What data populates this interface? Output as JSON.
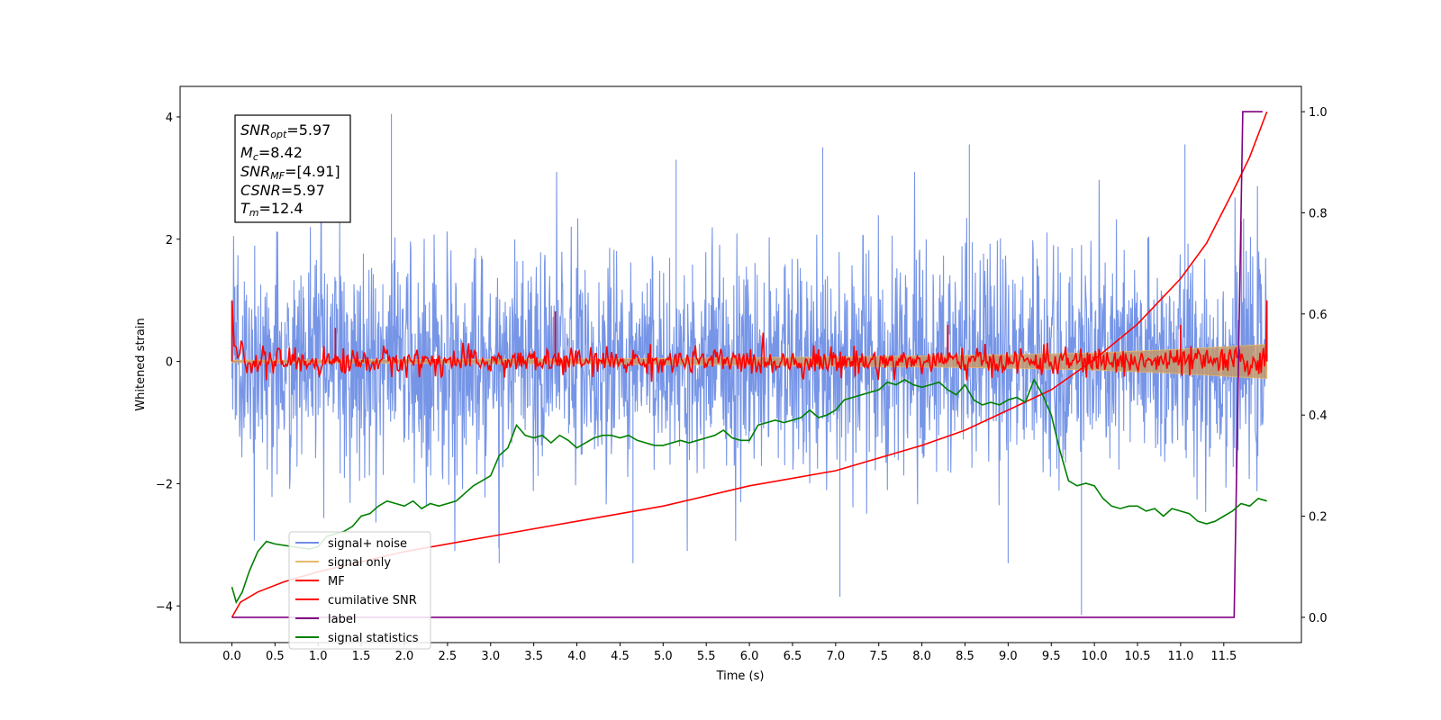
{
  "colors": {
    "signal_noise": "#6f8fe6",
    "signal_only": "#e8b86d",
    "signal_only_fill": "#c49a6c",
    "mf": "#ff0000",
    "cumulative_snr": "#ff0000",
    "label": "#800080",
    "signal_statistics": "#008000"
  },
  "stats_box": {
    "snr_opt": {
      "base": "SNR",
      "sub": "opt",
      "value": "=5.97"
    },
    "mc": {
      "base": "M",
      "sub": "c",
      "value": "=8.42"
    },
    "snr_mf": {
      "base": "SNR",
      "sub": "MF",
      "value": "=[4.91]"
    },
    "csnr": {
      "base": "CSNR",
      "sub": "",
      "value": "=5.97"
    },
    "tm": {
      "base": "T",
      "sub": "m",
      "value": "=12.4"
    }
  },
  "chart_data": {
    "type": "line",
    "xlabel": "Time (s)",
    "ylabel": "Whitened strain",
    "xlim": [
      -0.6,
      12.4
    ],
    "ylim": [
      -4.6,
      4.5
    ],
    "y2lim": [
      -0.05,
      1.05
    ],
    "x_ticks": [
      "0.0",
      "0.5",
      "1.0",
      "1.5",
      "2.0",
      "2.5",
      "3.0",
      "3.5",
      "4.0",
      "4.5",
      "5.0",
      "5.5",
      "6.0",
      "6.5",
      "7.0",
      "7.5",
      "8.0",
      "8.5",
      "9.0",
      "9.5",
      "10.0",
      "10.5",
      "11.0",
      "11.5"
    ],
    "y_ticks": [
      "4",
      "2",
      "0",
      "−2",
      "−4"
    ],
    "y2_ticks": [
      "1.0",
      "0.8",
      "0.6",
      "0.4",
      "0.2",
      "0.0"
    ],
    "legend": {
      "location": "lower-left",
      "entries": [
        "signal+ noise",
        "signal only",
        "MF",
        "cumilative SNR",
        "label",
        "signal statistics"
      ]
    },
    "series": [
      {
        "name": "signal+ noise",
        "axis": "left",
        "description_shape": "noise band, mostly between -2 and 2",
        "envelope_x": [
          0.0,
          12.0
        ],
        "envelope_y": [
          -2.3,
          2.3
        ],
        "notable_peaks": [
          [
            1.85,
            4.05
          ],
          [
            7.05,
            -3.85
          ],
          [
            9.85,
            -4.15
          ],
          [
            9.0,
            -3.3
          ],
          [
            4.65,
            -3.3
          ],
          [
            3.1,
            -3.3
          ],
          [
            6.85,
            3.5
          ],
          [
            8.55,
            3.55
          ],
          [
            11.05,
            3.55
          ],
          [
            5.15,
            3.3
          ]
        ]
      },
      {
        "name": "signal only",
        "axis": "left",
        "x": [
          0.0,
          2.0,
          4.0,
          6.0,
          8.0,
          9.0,
          10.0,
          11.0,
          12.0
        ],
        "amplitude": [
          0.02,
          0.03,
          0.04,
          0.06,
          0.09,
          0.11,
          0.14,
          0.2,
          0.28
        ]
      },
      {
        "name": "MF",
        "axis": "left",
        "x_start": 0.0,
        "x_end": 12.0,
        "y_start": 1.0,
        "y_end": 1.0,
        "band": [
          -0.3,
          0.3
        ],
        "notable_peaks": [
          [
            3.75,
            0.82
          ],
          [
            1.2,
            0.55
          ],
          [
            8.3,
            0.6
          ],
          [
            11.0,
            0.6
          ],
          [
            0.0,
            1.0
          ],
          [
            12.0,
            1.0
          ]
        ]
      },
      {
        "name": "cumilative SNR",
        "axis": "right",
        "x": [
          0.0,
          0.1,
          0.3,
          0.6,
          1.0,
          1.5,
          2.0,
          3.0,
          4.0,
          5.0,
          6.0,
          7.0,
          8.0,
          8.5,
          9.0,
          9.5,
          10.0,
          10.5,
          11.0,
          11.3,
          11.6,
          11.8,
          12.0
        ],
        "y": [
          0.0,
          0.03,
          0.05,
          0.07,
          0.09,
          0.11,
          0.13,
          0.16,
          0.19,
          0.22,
          0.26,
          0.29,
          0.34,
          0.37,
          0.41,
          0.45,
          0.51,
          0.58,
          0.67,
          0.74,
          0.84,
          0.91,
          1.0
        ]
      },
      {
        "name": "label",
        "axis": "right",
        "x": [
          0.0,
          11.62,
          11.72,
          11.95
        ],
        "y": [
          0.0,
          0.0,
          1.0,
          1.0
        ]
      },
      {
        "name": "signal statistics",
        "axis": "right",
        "x": [
          0.0,
          0.05,
          0.12,
          0.2,
          0.3,
          0.4,
          0.5,
          0.7,
          0.9,
          1.0,
          1.1,
          1.2,
          1.3,
          1.4,
          1.5,
          1.6,
          1.7,
          1.8,
          1.9,
          2.0,
          2.1,
          2.2,
          2.3,
          2.4,
          2.5,
          2.6,
          2.7,
          2.8,
          2.9,
          3.0,
          3.1,
          3.2,
          3.3,
          3.4,
          3.5,
          3.6,
          3.7,
          3.8,
          3.9,
          4.0,
          4.1,
          4.2,
          4.3,
          4.4,
          4.5,
          4.6,
          4.7,
          4.8,
          4.9,
          5.0,
          5.1,
          5.2,
          5.3,
          5.4,
          5.5,
          5.6,
          5.7,
          5.8,
          5.9,
          6.0,
          6.1,
          6.2,
          6.3,
          6.4,
          6.5,
          6.6,
          6.7,
          6.8,
          6.9,
          7.0,
          7.1,
          7.2,
          7.3,
          7.4,
          7.5,
          7.6,
          7.7,
          7.8,
          7.9,
          8.0,
          8.1,
          8.2,
          8.3,
          8.4,
          8.5,
          8.6,
          8.7,
          8.8,
          8.9,
          9.0,
          9.1,
          9.2,
          9.3,
          9.4,
          9.5,
          9.6,
          9.7,
          9.8,
          9.9,
          10.0,
          10.1,
          10.2,
          10.3,
          10.4,
          10.5,
          10.6,
          10.7,
          10.8,
          10.9,
          11.0,
          11.1,
          11.2,
          11.3,
          11.4,
          11.5,
          11.6,
          11.7,
          11.8,
          11.9,
          12.0
        ],
        "y": [
          0.06,
          0.03,
          0.05,
          0.09,
          0.13,
          0.15,
          0.145,
          0.14,
          0.135,
          0.14,
          0.16,
          0.165,
          0.17,
          0.18,
          0.2,
          0.205,
          0.22,
          0.23,
          0.225,
          0.22,
          0.23,
          0.215,
          0.225,
          0.22,
          0.225,
          0.23,
          0.245,
          0.26,
          0.27,
          0.28,
          0.32,
          0.335,
          0.38,
          0.36,
          0.355,
          0.36,
          0.345,
          0.36,
          0.35,
          0.335,
          0.345,
          0.355,
          0.36,
          0.36,
          0.355,
          0.36,
          0.35,
          0.345,
          0.34,
          0.34,
          0.345,
          0.35,
          0.345,
          0.35,
          0.355,
          0.36,
          0.37,
          0.355,
          0.35,
          0.35,
          0.38,
          0.385,
          0.39,
          0.385,
          0.39,
          0.395,
          0.41,
          0.395,
          0.4,
          0.41,
          0.43,
          0.435,
          0.44,
          0.445,
          0.45,
          0.465,
          0.46,
          0.47,
          0.46,
          0.455,
          0.46,
          0.465,
          0.45,
          0.44,
          0.46,
          0.43,
          0.42,
          0.425,
          0.42,
          0.43,
          0.435,
          0.425,
          0.47,
          0.44,
          0.4,
          0.33,
          0.27,
          0.26,
          0.265,
          0.26,
          0.235,
          0.22,
          0.215,
          0.22,
          0.22,
          0.21,
          0.215,
          0.2,
          0.215,
          0.21,
          0.205,
          0.19,
          0.185,
          0.19,
          0.2,
          0.21,
          0.225,
          0.22,
          0.235,
          0.23
        ]
      }
    ]
  }
}
